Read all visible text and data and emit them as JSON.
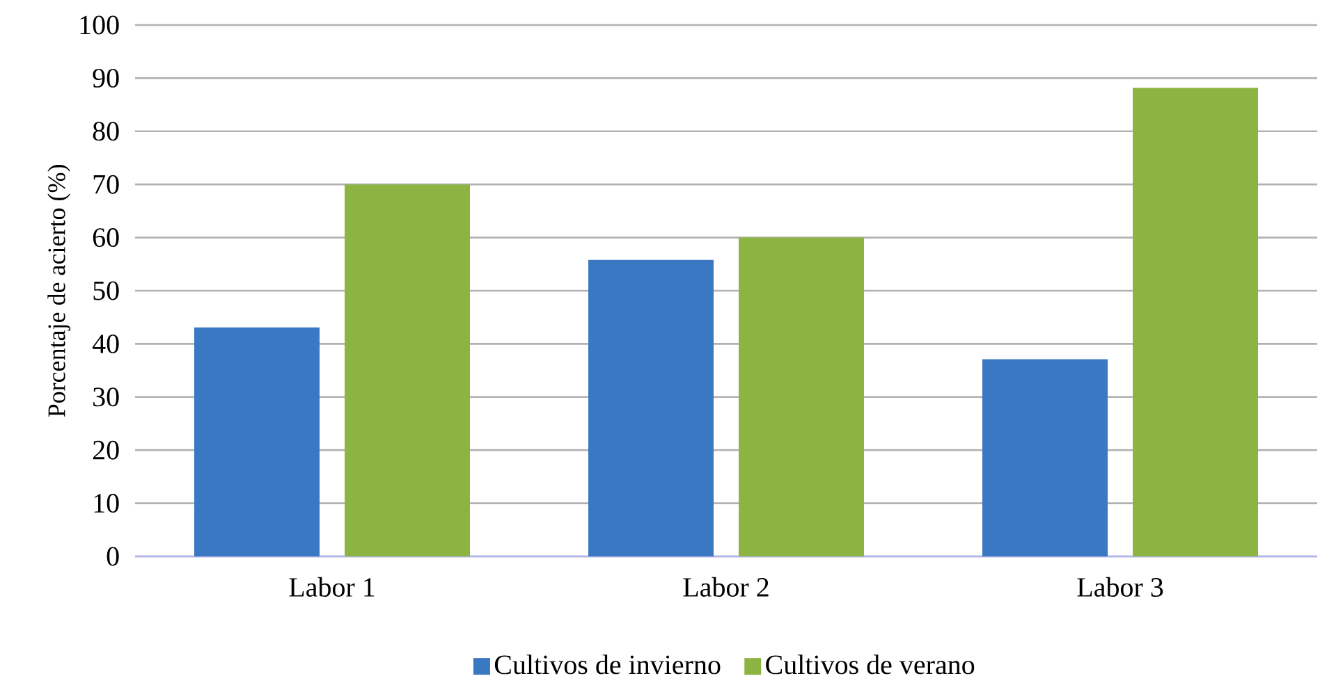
{
  "chart_data": {
    "type": "bar",
    "ylabel": "Porcentaje de acierto (%)",
    "categories": [
      "Labor 1",
      "Labor 2",
      "Labor 3"
    ],
    "series": [
      {
        "name": "Cultivos de invierno",
        "color": "#3a78c3",
        "values": [
          43.1,
          55.8,
          37.1
        ]
      },
      {
        "name": "Cultivos de verano",
        "color": "#8db443",
        "values": [
          70,
          60,
          88.2
        ]
      }
    ],
    "ylim": [
      0,
      100
    ],
    "yticks": [
      0,
      10,
      20,
      30,
      40,
      50,
      60,
      70,
      80,
      90,
      100
    ],
    "grid": "y",
    "legend": "bottom"
  }
}
